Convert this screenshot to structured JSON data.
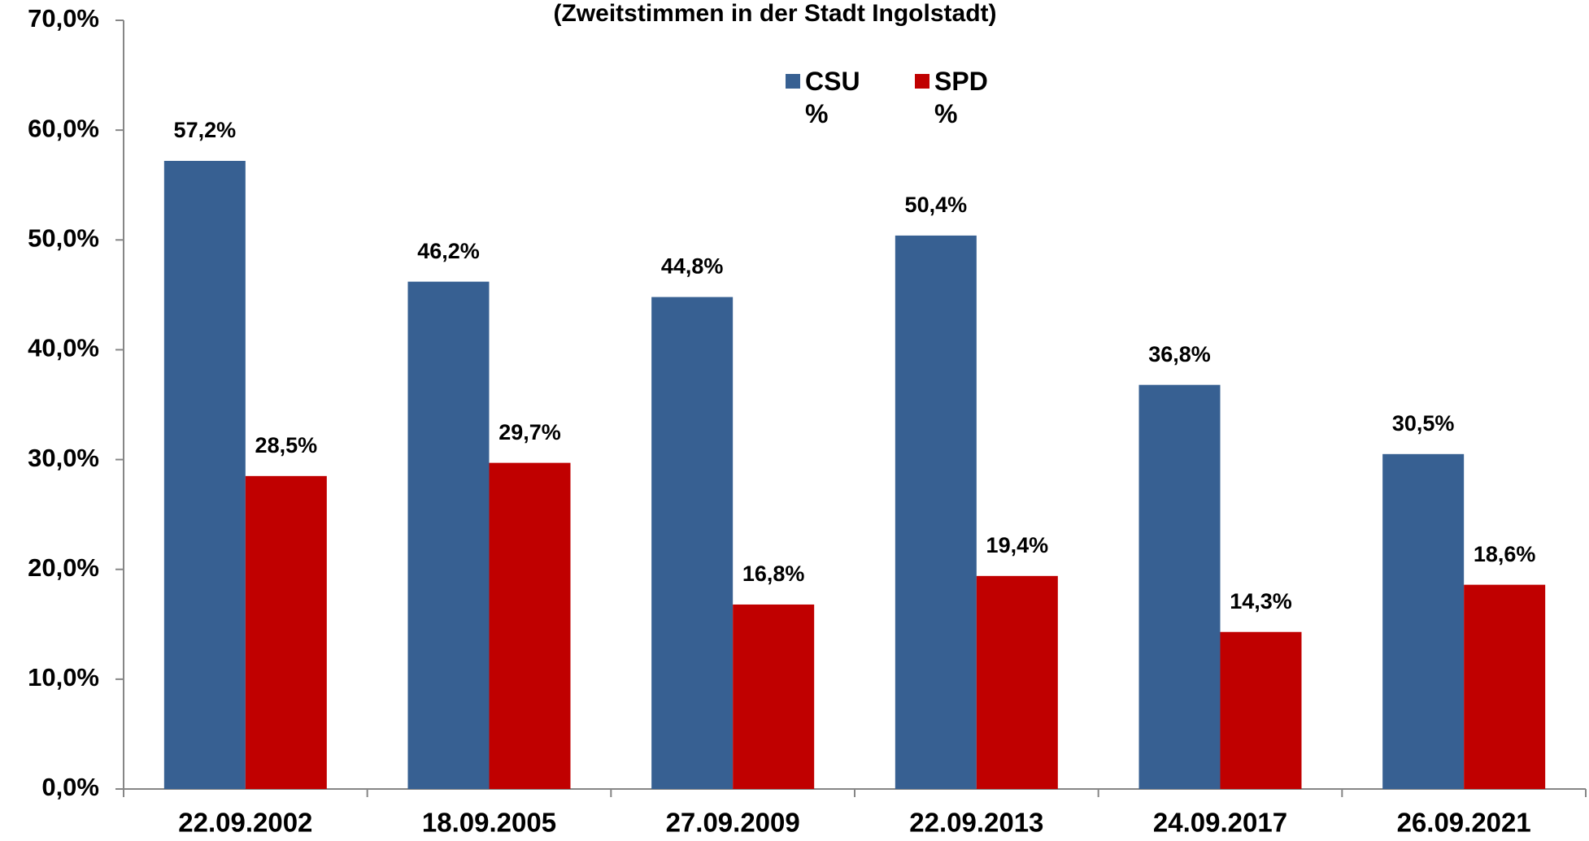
{
  "chart_data": {
    "type": "bar",
    "title": "(Zweitstimmen in der Stadt Ingolstadt)",
    "categories": [
      "22.09.2002",
      "18.09.2005",
      "27.09.2009",
      "22.09.2013",
      "24.09.2017",
      "26.09.2021"
    ],
    "series": [
      {
        "name": "CSU %",
        "color": "#376092",
        "values": [
          57.2,
          46.2,
          44.8,
          50.4,
          36.8,
          30.5
        ],
        "value_labels": [
          "57,2%",
          "46,2%",
          "44,8%",
          "50,4%",
          "36,8%",
          "30,5%"
        ]
      },
      {
        "name": "SPD %",
        "color": "#c00000",
        "values": [
          28.5,
          29.7,
          16.8,
          19.4,
          14.3,
          18.6
        ],
        "value_labels": [
          "28,5%",
          "29,7%",
          "16,8%",
          "19,4%",
          "14,3%",
          "18,6%"
        ]
      }
    ],
    "ylim": [
      0,
      70
    ],
    "yticks": [
      {
        "value": 0,
        "label": "0,0%"
      },
      {
        "value": 10,
        "label": "10,0%"
      },
      {
        "value": 20,
        "label": "20,0%"
      },
      {
        "value": 30,
        "label": "30,0%"
      },
      {
        "value": 40,
        "label": "40,0%"
      },
      {
        "value": 50,
        "label": "50,0%"
      },
      {
        "value": 60,
        "label": "60,0%"
      },
      {
        "value": 70,
        "label": "70,0%"
      }
    ],
    "grid": false,
    "legend": "top"
  }
}
